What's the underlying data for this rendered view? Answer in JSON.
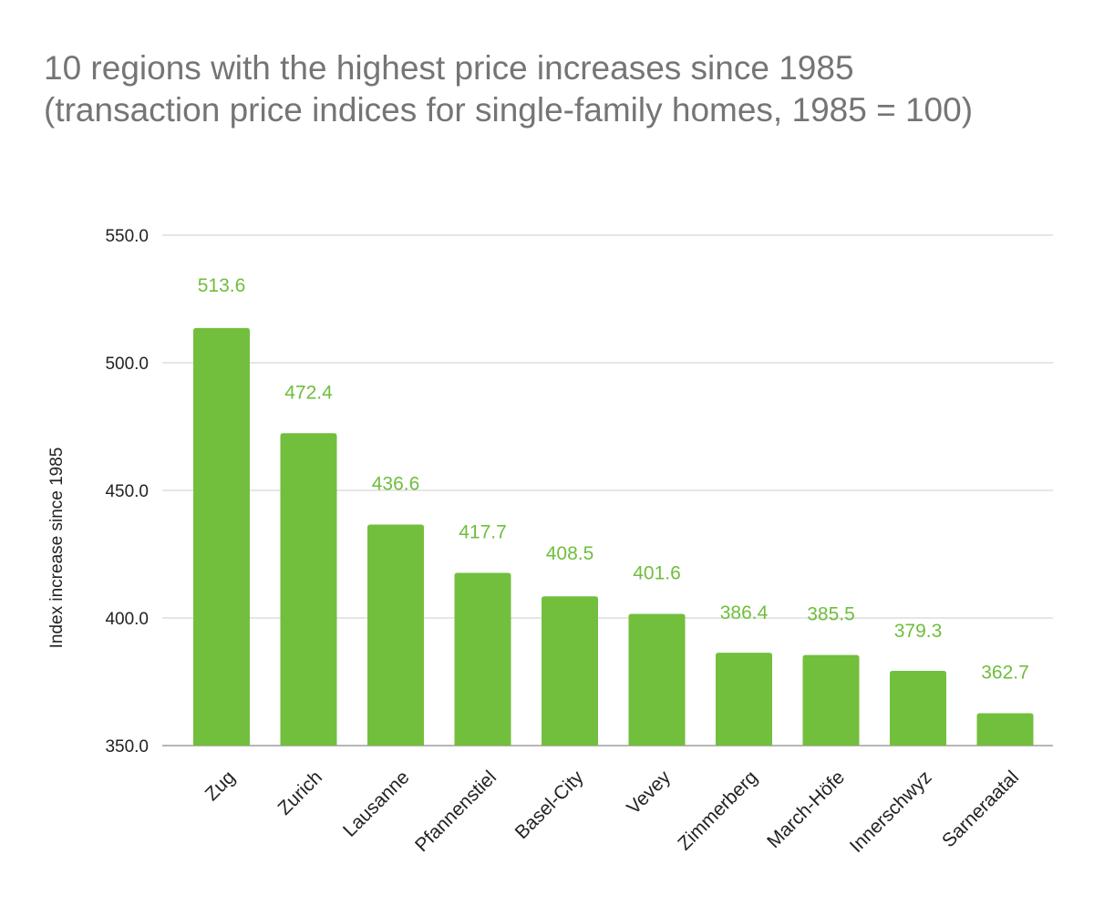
{
  "chart_data": {
    "type": "bar",
    "title": "10 regions with the highest price increases since 1985",
    "subtitle": "(transaction price indices for single-family homes, 1985 = 100)",
    "xlabel": "",
    "ylabel": "Index increase since 1985",
    "categories": [
      "Zug",
      "Zurich",
      "Lausanne",
      "Pfannenstiel",
      "Basel-City",
      "Vevey",
      "Zimmerberg",
      "March-Höfe",
      "Innerschwyz",
      "Sarneraatal"
    ],
    "values": [
      513.6,
      472.4,
      436.6,
      417.7,
      408.5,
      401.6,
      386.4,
      385.5,
      379.3,
      362.7
    ],
    "data_labels": [
      "513.6",
      "472.4",
      "436.6",
      "417.7",
      "408.5",
      "401.6",
      "386.4",
      "385.5",
      "379.3",
      "362.7"
    ],
    "ylim": [
      350,
      550
    ],
    "yticks": [
      350,
      400,
      450,
      500,
      550
    ],
    "ytick_labels": [
      "350.0",
      "400.0",
      "450.0",
      "500.0",
      "550.0"
    ],
    "grid": true,
    "legend": "none",
    "colors": {
      "bar": "#72bf3d",
      "data_label": "#6fbe3c",
      "title": "#757575",
      "gridline": "#cccccc",
      "axis_text": "#222222"
    }
  }
}
